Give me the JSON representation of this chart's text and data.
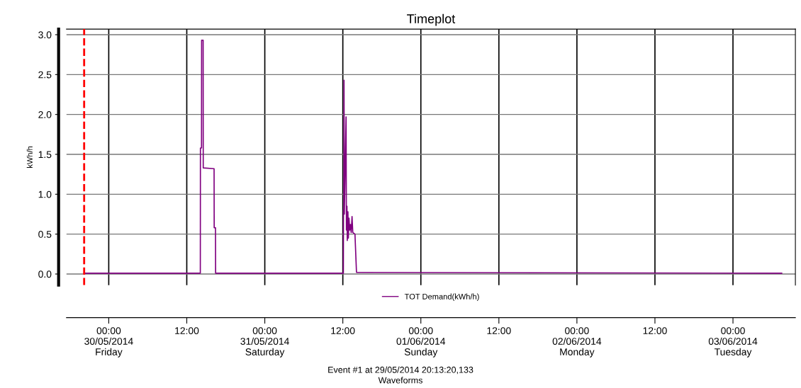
{
  "chart_data": {
    "type": "line",
    "title": "Timeplot",
    "ylabel": "kWh/h",
    "annotations": [
      "Event #1 at 29/05/2014 20:13:20,133",
      "Waveforms"
    ],
    "x": [
      "2014-05-29T20:13",
      "2014-05-30T14:05",
      "2014-05-30T14:06",
      "2014-05-30T14:16",
      "2014-05-30T14:17",
      "2014-05-30T14:31",
      "2014-05-30T14:32",
      "2014-05-30T16:12",
      "2014-05-30T16:13",
      "2014-05-30T16:25",
      "2014-05-30T16:26",
      "2014-05-31T12:05",
      "2014-05-31T12:06",
      "2014-05-31T12:10",
      "2014-05-31T12:11",
      "2014-05-31T12:14",
      "2014-05-31T12:30",
      "2014-05-31T12:33",
      "2014-05-31T12:38",
      "2014-05-31T12:41",
      "2014-05-31T12:47",
      "2014-05-31T12:51",
      "2014-05-31T12:57",
      "2014-05-31T13:03",
      "2014-05-31T13:10",
      "2014-05-31T13:17",
      "2014-05-31T13:25",
      "2014-05-31T13:32",
      "2014-05-31T13:52",
      "2014-05-31T14:06",
      "2014-06-03T07:30"
    ],
    "series": [
      {
        "name": "TOT Demand(kWh/h)",
        "color": "#800080",
        "values": [
          0.01,
          0.01,
          1.58,
          1.58,
          2.93,
          2.93,
          1.33,
          1.32,
          0.58,
          0.58,
          0.01,
          0.01,
          0.8,
          0.8,
          2.43,
          0.75,
          1.97,
          0.55,
          0.85,
          0.42,
          0.78,
          0.45,
          0.7,
          0.55,
          0.62,
          0.52,
          0.72,
          0.52,
          0.5,
          0.02,
          0.01
        ]
      }
    ],
    "xlim": [
      "2014-05-29T17:30",
      "2014-06-03T09:36"
    ],
    "xticks": [
      {
        "value": "2014-05-30T00:00",
        "label": "00:00\n30/05/2014\nFriday"
      },
      {
        "value": "2014-05-30T12:00",
        "label": "12:00"
      },
      {
        "value": "2014-05-31T00:00",
        "label": "00:00\n31/05/2014\nSaturday"
      },
      {
        "value": "2014-05-31T12:00",
        "label": "12:00"
      },
      {
        "value": "2014-06-01T00:00",
        "label": "00:00\n01/06/2014\nSunday"
      },
      {
        "value": "2014-06-01T12:00",
        "label": "12:00"
      },
      {
        "value": "2014-06-02T00:00",
        "label": "00:00\n02/06/2014\nMonday"
      },
      {
        "value": "2014-06-02T12:00",
        "label": "12:00"
      },
      {
        "value": "2014-06-03T00:00",
        "label": "00:00\n03/06/2014\nTuesday"
      }
    ],
    "ylim": [
      -0.14,
      3.07
    ],
    "yticks": [
      {
        "value": 0,
        "label": "0.0"
      },
      {
        "value": 0.5,
        "label": "0.5"
      },
      {
        "value": 1,
        "label": "1.0"
      },
      {
        "value": 1.5,
        "label": "1.5"
      },
      {
        "value": 2,
        "label": "2.0"
      },
      {
        "value": 2.5,
        "label": "2.5"
      },
      {
        "value": 3,
        "label": "3.0"
      }
    ],
    "ref_lines": [
      {
        "axis": "x",
        "value": "2014-05-29T20:13",
        "color": "#ff0000",
        "line_style": "dashed"
      }
    ],
    "grid": true,
    "legend": "bottom",
    "line_style": "solid",
    "marker": "none"
  }
}
